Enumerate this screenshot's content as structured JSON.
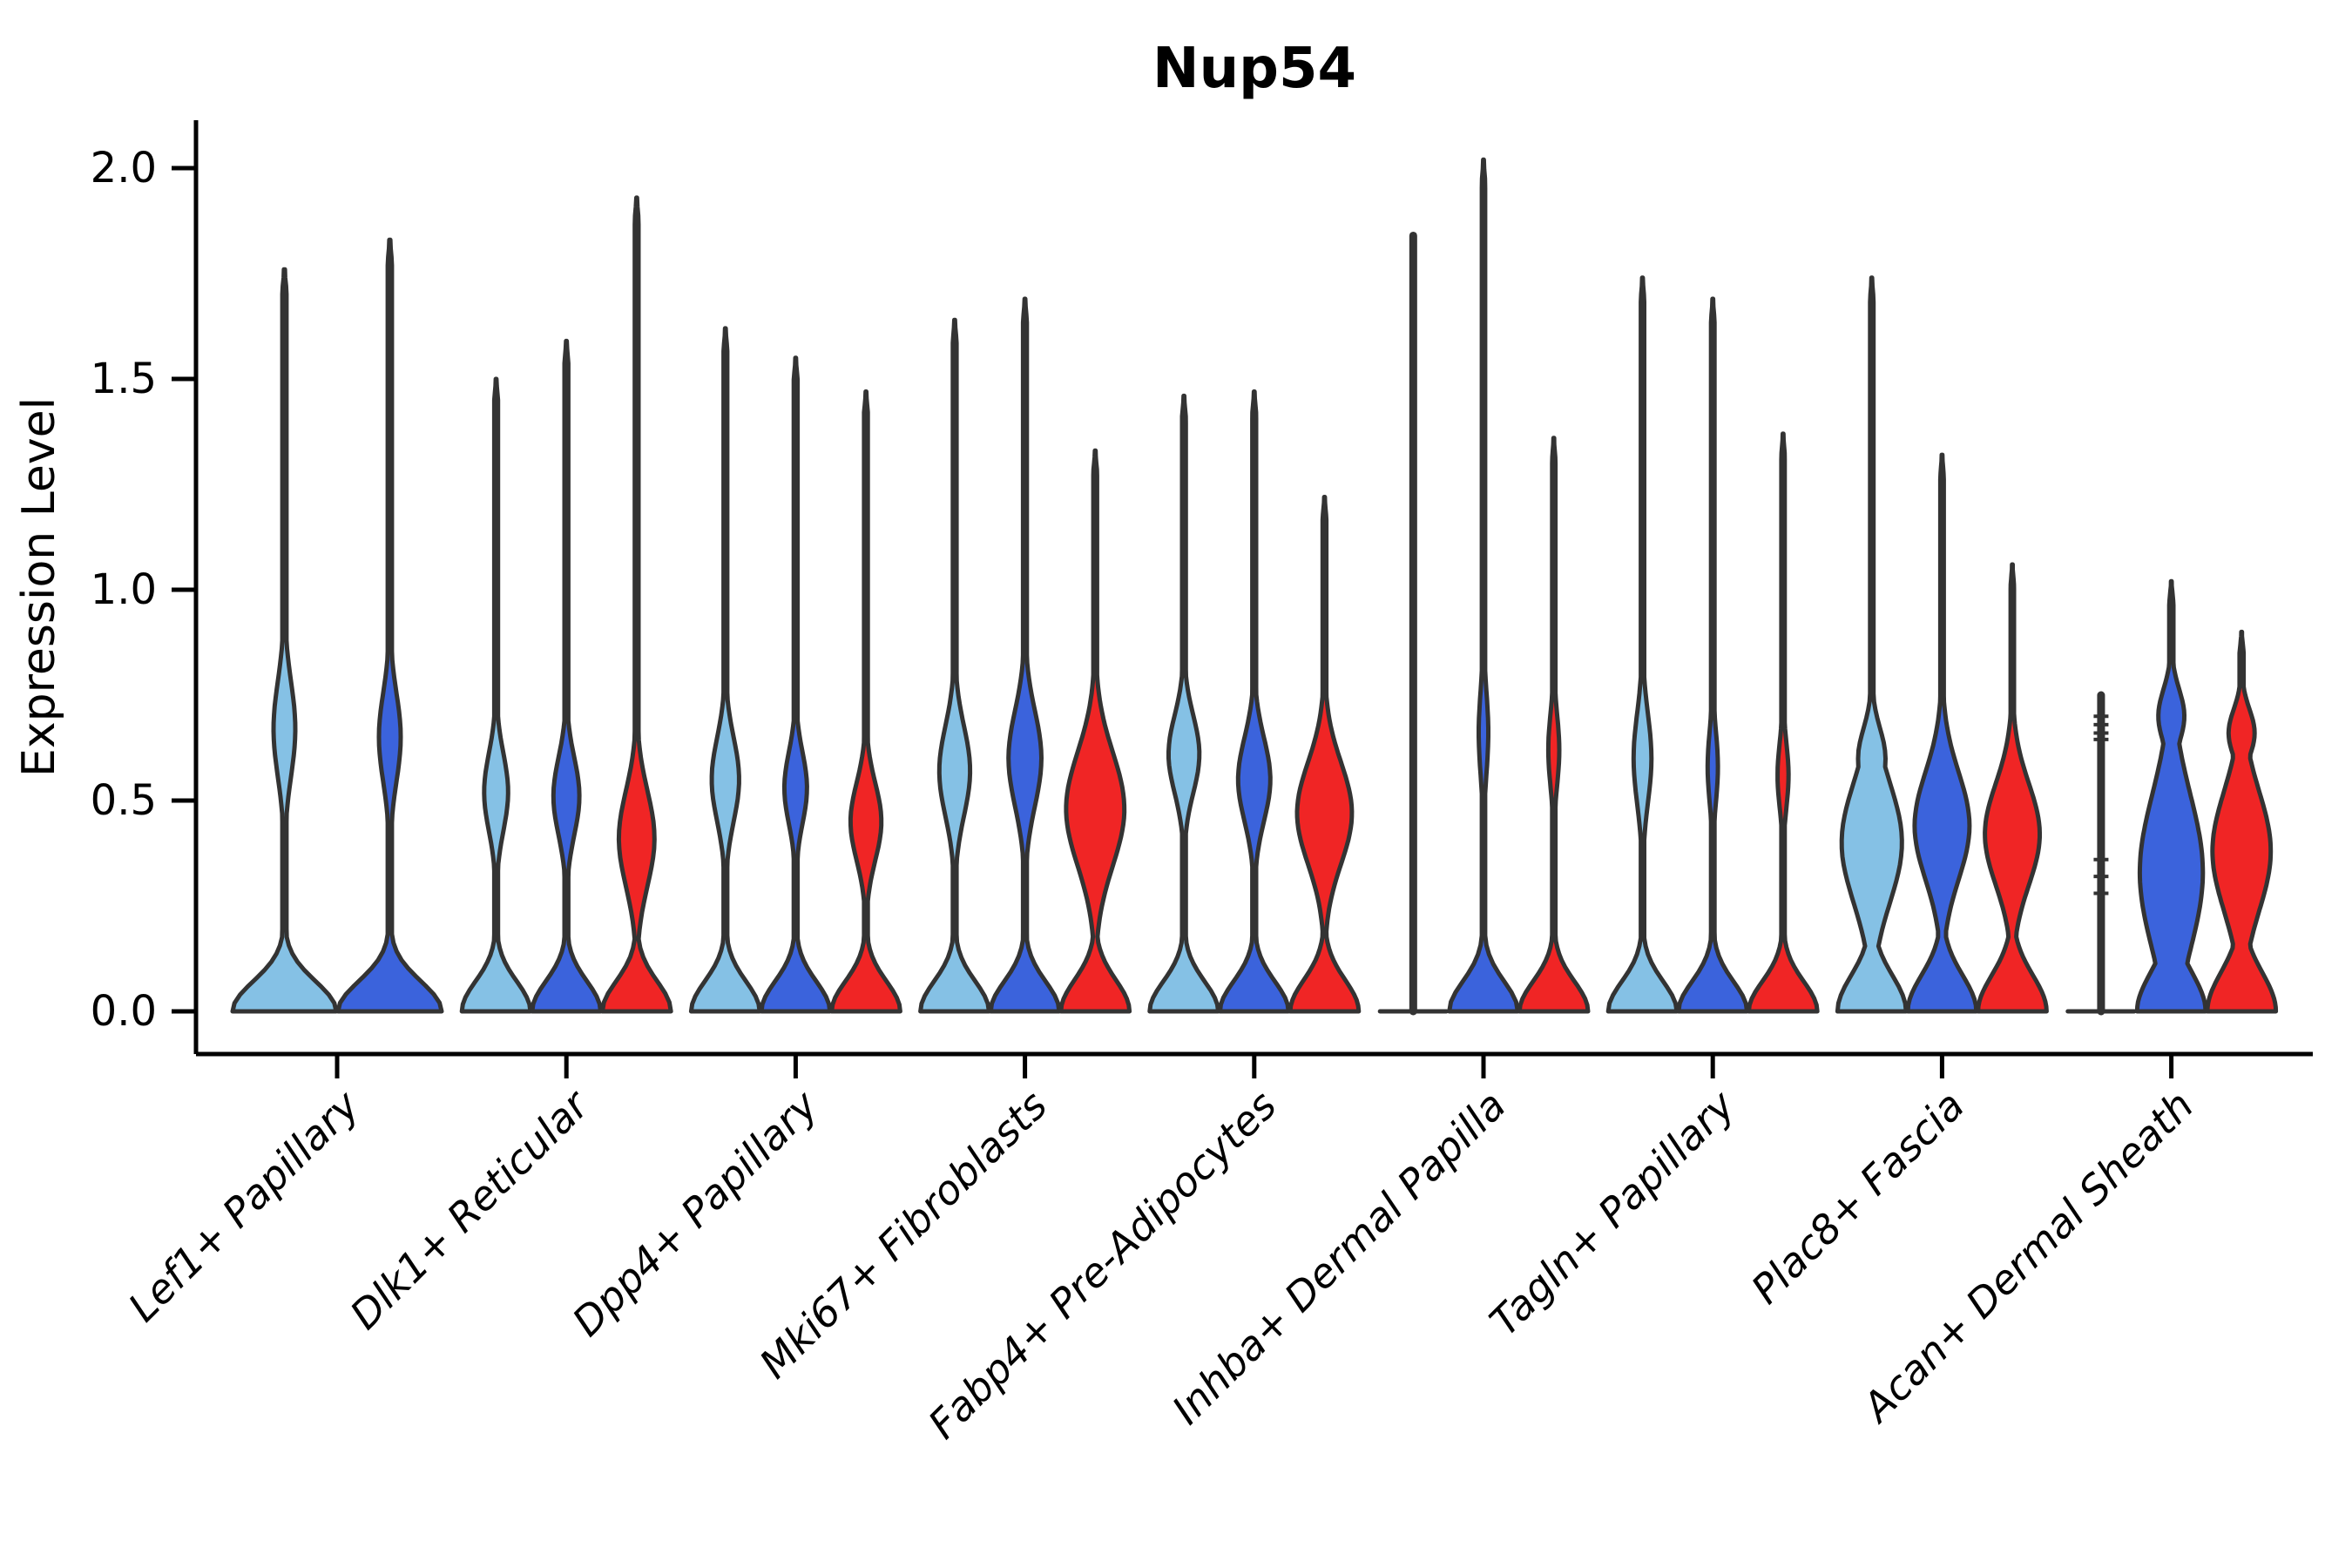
{
  "chart_data": {
    "type": "violin",
    "title": "Nup54",
    "xlabel": "",
    "ylabel": "Expression Level",
    "ylim": [
      -0.1,
      2.11
    ],
    "grid": false,
    "legend": "none",
    "yticks": [
      {
        "value": 0.0,
        "label": "0.0"
      },
      {
        "value": 0.5,
        "label": "0.5"
      },
      {
        "value": 1.0,
        "label": "1.0"
      },
      {
        "value": 1.5,
        "label": "1.5"
      },
      {
        "value": 2.0,
        "label": "2.0"
      }
    ],
    "categories": [
      "Lef1+ Papillary",
      "Dlk1+ Reticular",
      "Dpp4+ Papillary",
      "Mki67+ Fibroblasts",
      "Fabp4+ Pre-Adipocytes",
      "Inhba+ Dermal Papilla",
      "Tagln+ Papillary",
      "Plac8+ Fascia",
      "Acan+ Dermal Sheath"
    ],
    "colors": {
      "light_blue": "#85C1E5",
      "blue": "#3B63DC",
      "red": "#F02525"
    },
    "violin_stroke": "#333333",
    "axis_color": "#000000",
    "groups": [
      {
        "label": "Lef1+ Papillary",
        "violins": [
          {
            "color": "light_blue",
            "max": 1.76,
            "base_sigma": 0.1,
            "stem": 0.04,
            "bumps": [
              {
                "c": 0.67,
                "s": 0.16,
                "a": 0.21
              }
            ]
          },
          {
            "color": "blue",
            "max": 1.83,
            "base_sigma": 0.1,
            "stem": 0.04,
            "bumps": [
              {
                "c": 0.65,
                "s": 0.15,
                "a": 0.21
              }
            ]
          }
        ]
      },
      {
        "label": "Dlk1+ Reticular",
        "violins": [
          {
            "color": "light_blue",
            "max": 1.5,
            "base_sigma": 0.1,
            "stem": 0.055,
            "bumps": [
              {
                "c": 0.52,
                "s": 0.13,
                "a": 0.35
              }
            ]
          },
          {
            "color": "blue",
            "max": 1.59,
            "base_sigma": 0.1,
            "stem": 0.055,
            "bumps": [
              {
                "c": 0.51,
                "s": 0.13,
                "a": 0.38
              }
            ]
          },
          {
            "color": "red",
            "max": 1.93,
            "base_sigma": 0.1,
            "stem": 0.055,
            "bumps": [
              {
                "c": 0.41,
                "s": 0.16,
                "a": 0.52
              }
            ]
          }
        ]
      },
      {
        "label": "Dpp4+ Papillary",
        "violins": [
          {
            "color": "light_blue",
            "max": 1.62,
            "base_sigma": 0.1,
            "stem": 0.055,
            "bumps": [
              {
                "c": 0.55,
                "s": 0.14,
                "a": 0.4
              }
            ]
          },
          {
            "color": "blue",
            "max": 1.55,
            "base_sigma": 0.1,
            "stem": 0.055,
            "bumps": [
              {
                "c": 0.53,
                "s": 0.12,
                "a": 0.33
              }
            ]
          },
          {
            "color": "red",
            "max": 1.47,
            "base_sigma": 0.1,
            "stem": 0.055,
            "bumps": [
              {
                "c": 0.45,
                "s": 0.13,
                "a": 0.45
              }
            ]
          }
        ]
      },
      {
        "label": "Mki67+ Fibroblasts",
        "violins": [
          {
            "color": "light_blue",
            "max": 1.64,
            "base_sigma": 0.1,
            "stem": 0.055,
            "bumps": [
              {
                "c": 0.57,
                "s": 0.15,
                "a": 0.45
              }
            ]
          },
          {
            "color": "blue",
            "max": 1.69,
            "base_sigma": 0.1,
            "stem": 0.055,
            "bumps": [
              {
                "c": 0.6,
                "s": 0.16,
                "a": 0.48
              }
            ]
          },
          {
            "color": "red",
            "max": 1.33,
            "base_sigma": 0.105,
            "stem": 0.055,
            "bumps": [
              {
                "c": 0.48,
                "s": 0.19,
                "a": 0.85
              }
            ]
          }
        ]
      },
      {
        "label": "Fabp4+ Pre-Adipocytes",
        "violins": [
          {
            "color": "light_blue",
            "max": 1.46,
            "base_sigma": 0.1,
            "stem": 0.055,
            "bumps": [
              {
                "c": 0.61,
                "s": 0.13,
                "a": 0.45
              }
            ]
          },
          {
            "color": "blue",
            "max": 1.47,
            "base_sigma": 0.1,
            "stem": 0.055,
            "bumps": [
              {
                "c": 0.55,
                "s": 0.14,
                "a": 0.47
              }
            ]
          },
          {
            "color": "red",
            "max": 1.22,
            "base_sigma": 0.105,
            "stem": 0.055,
            "bumps": [
              {
                "c": 0.47,
                "s": 0.17,
                "a": 0.8
              }
            ]
          }
        ]
      },
      {
        "label": "Inhba+ Dermal Papilla",
        "violins": [
          {
            "color": "light_blue",
            "type": "line",
            "max": 1.84,
            "points": []
          },
          {
            "color": "blue",
            "max": 2.02,
            "base_sigma": 0.1,
            "stem": 0.048,
            "bumps": [
              {
                "c": 0.66,
                "s": 0.14,
                "a": 0.14
              }
            ]
          },
          {
            "color": "red",
            "max": 1.36,
            "base_sigma": 0.1,
            "stem": 0.048,
            "bumps": [
              {
                "c": 0.62,
                "s": 0.12,
                "a": 0.16
              }
            ]
          }
        ]
      },
      {
        "label": "Tagln+ Papillary",
        "violins": [
          {
            "color": "light_blue",
            "max": 1.74,
            "base_sigma": 0.1,
            "stem": 0.05,
            "bumps": [
              {
                "c": 0.6,
                "s": 0.15,
                "a": 0.26
              }
            ]
          },
          {
            "color": "blue",
            "max": 1.69,
            "base_sigma": 0.1,
            "stem": 0.05,
            "bumps": [
              {
                "c": 0.58,
                "s": 0.12,
                "a": 0.15
              }
            ]
          },
          {
            "color": "red",
            "max": 1.37,
            "base_sigma": 0.1,
            "stem": 0.05,
            "bumps": [
              {
                "c": 0.56,
                "s": 0.11,
                "a": 0.16
              }
            ]
          }
        ]
      },
      {
        "label": "Plac8+ Fascia",
        "violins": [
          {
            "color": "light_blue",
            "max": 1.74,
            "base_sigma": 0.12,
            "stem": 0.05,
            "bumps": [
              {
                "c": 0.4,
                "s": 0.2,
                "a": 0.88
              },
              {
                "c": 0.6,
                "s": 0.1,
                "a": 0.4
              }
            ]
          },
          {
            "color": "blue",
            "max": 1.32,
            "base_sigma": 0.12,
            "stem": 0.05,
            "bumps": [
              {
                "c": 0.44,
                "s": 0.18,
                "a": 0.8
              }
            ]
          },
          {
            "color": "red",
            "max": 1.06,
            "base_sigma": 0.12,
            "stem": 0.05,
            "bumps": [
              {
                "c": 0.42,
                "s": 0.17,
                "a": 0.8
              }
            ]
          }
        ]
      },
      {
        "label": "Acan+ Dermal Sheath",
        "violins": [
          {
            "color": "light_blue",
            "type": "line",
            "max": 0.75,
            "points": [
              0.7,
              0.68,
              0.66,
              0.645,
              0.36,
              0.32,
              0.28
            ]
          },
          {
            "color": "blue",
            "max": 1.02,
            "base_sigma": 0.13,
            "stem": 0.06,
            "bumps": [
              {
                "c": 0.33,
                "s": 0.26,
                "a": 0.92
              },
              {
                "c": 0.7,
                "s": 0.09,
                "a": 0.38
              }
            ]
          },
          {
            "color": "red",
            "max": 0.9,
            "base_sigma": 0.13,
            "stem": 0.06,
            "bumps": [
              {
                "c": 0.38,
                "s": 0.2,
                "a": 0.85
              },
              {
                "c": 0.66,
                "s": 0.08,
                "a": 0.38
              }
            ]
          }
        ]
      }
    ]
  }
}
